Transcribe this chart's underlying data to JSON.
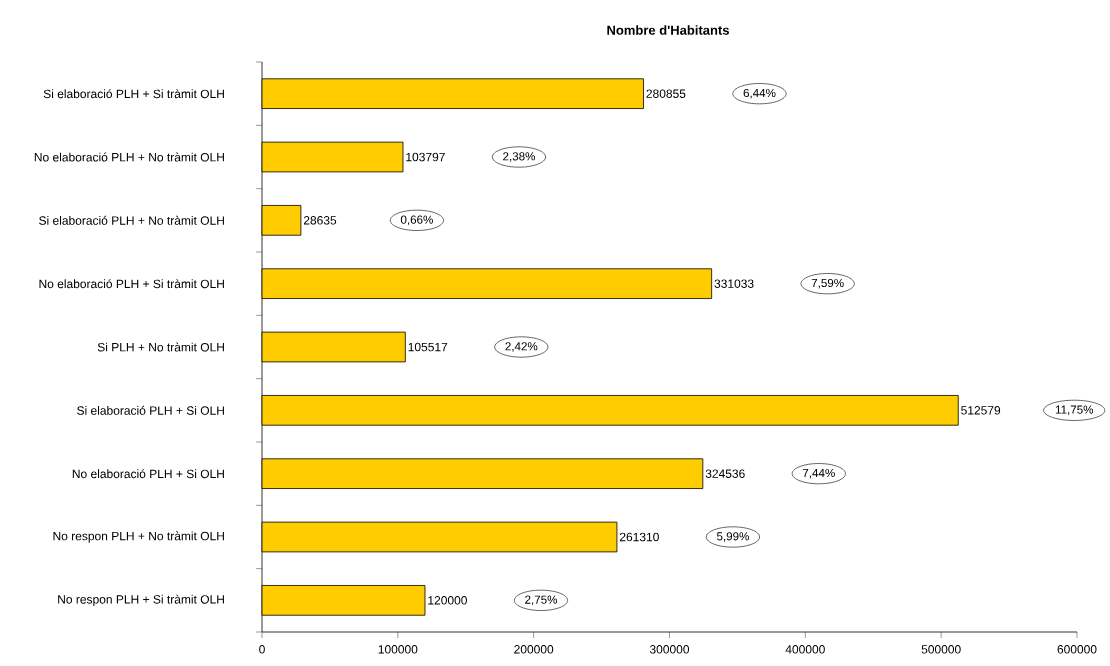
{
  "chart_data": {
    "type": "bar",
    "orientation": "horizontal",
    "title": "Nombre d'Habitants",
    "categories": [
      "Si elaboració PLH + Si tràmit OLH",
      "No elaboració PLH + No tràmit OLH",
      "Si elaboració PLH + No tràmit OLH",
      "No elaboració PLH + Si tràmit OLH",
      "Si PLH + No tràmit OLH",
      "Si elaboració PLH + Si OLH",
      "No elaboració PLH + Si OLH",
      "No respon PLH + No tràmit OLH",
      "No respon PLH + Si tràmit OLH"
    ],
    "values": [
      280855,
      103797,
      28635,
      331033,
      105517,
      512579,
      324536,
      261310,
      120000
    ],
    "color": "#ffcc00",
    "data_labels": true,
    "xlim": [
      0,
      600000
    ],
    "xticks": [
      0,
      100000,
      200000,
      300000,
      400000,
      500000,
      600000
    ],
    "annotations": [
      "6,44%",
      "2,38%",
      "0,66%",
      "7,59%",
      "2,42%",
      "11,75%",
      "7,44%",
      "5,99%",
      "2,75%"
    ],
    "grid": false
  }
}
